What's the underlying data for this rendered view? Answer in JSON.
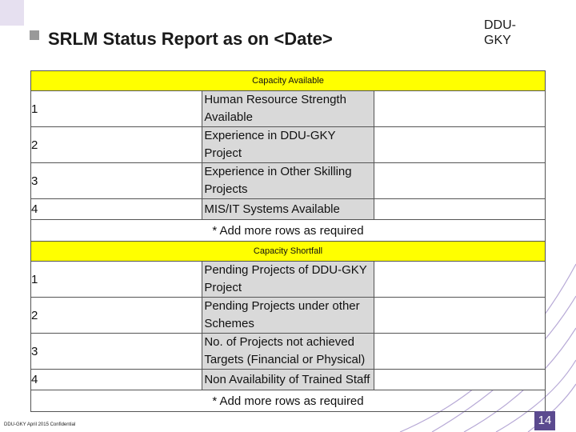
{
  "header": {
    "title": "SRLM Status Report as on <Date>",
    "brand": "DDU-GKY"
  },
  "sections": [
    {
      "heading": "Capacity Available",
      "rows": [
        {
          "no": "1",
          "item": "Human Resource Strength Available"
        },
        {
          "no": "2",
          "item": "Experience in DDU-GKY Project"
        },
        {
          "no": "3",
          "item": "Experience in Other Skilling Projects"
        },
        {
          "no": "4",
          "item": "MIS/IT Systems Available"
        }
      ],
      "note": "* Add more rows as required"
    },
    {
      "heading": "Capacity Shortfall",
      "rows": [
        {
          "no": "1",
          "item": "Pending Projects of DDU-GKY Project"
        },
        {
          "no": "2",
          "item": "Pending Projects under other Schemes"
        },
        {
          "no": "3",
          "item": "No. of Projects not achieved Targets (Financial or Physical)"
        },
        {
          "no": "4",
          "item": "Non Availability of Trained Staff"
        }
      ],
      "note": "* Add more rows as required"
    }
  ],
  "footer": {
    "text": "DDU-GKY April 2015 Confidential",
    "page": "14"
  }
}
